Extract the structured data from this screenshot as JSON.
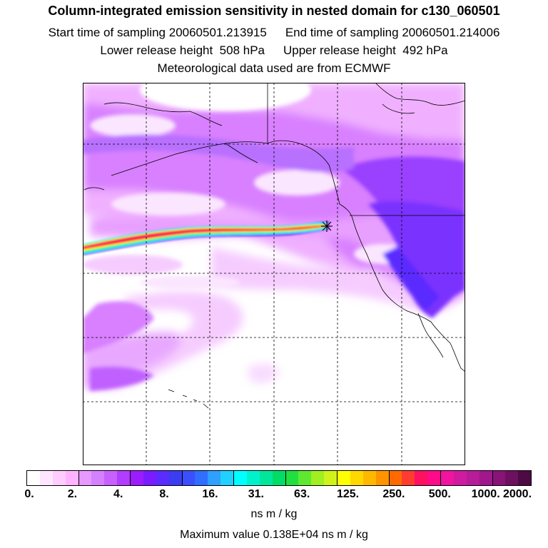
{
  "title": "Column-integrated emission sensitivity in nested domain for c130_060501",
  "sampling": {
    "start_label": "Start time of sampling",
    "start_value": "20060501.213915",
    "end_label": "End time of sampling",
    "end_value": "20060501.214006"
  },
  "release": {
    "lower_label": "Lower release height",
    "lower_value": "508 hPa",
    "upper_label": "Upper release height",
    "upper_value": "492 hPa"
  },
  "meteo": "Meteorological data used are from ECMWF",
  "colorbar": {
    "colors": [
      "#ffffff",
      "#ffe6ff",
      "#ffccff",
      "#ffb3ff",
      "#e699ff",
      "#d580ff",
      "#c860ff",
      "#b23cff",
      "#9b1cff",
      "#7a1cff",
      "#5a2cff",
      "#3c3cf0",
      "#3a50ff",
      "#2f6eff",
      "#2fa0ff",
      "#20d0ff",
      "#00ffff",
      "#00f2cc",
      "#00e69a",
      "#00dd66",
      "#20e040",
      "#60e830",
      "#a0ef20",
      "#d0f21a",
      "#ffff00",
      "#ffd800",
      "#ffb800",
      "#ff9400",
      "#ff6a00",
      "#ff3c30",
      "#ff1060",
      "#ff0a8a",
      "#f0149e",
      "#d01aa0",
      "#b81c98",
      "#a0188c",
      "#881478",
      "#6e1060",
      "#4e0a44"
    ],
    "tick_labels": [
      "0.",
      "2.",
      "4.",
      "8.",
      "16.",
      "31.",
      "63.",
      "125.",
      "250.",
      "500.",
      "1000.",
      "2000."
    ],
    "units": "ns m / kg"
  },
  "max_label": "Maximum value  0.138E+04 ns m / kg",
  "plume": {
    "core_color": "#ff1060",
    "release_marker": "star-x"
  }
}
